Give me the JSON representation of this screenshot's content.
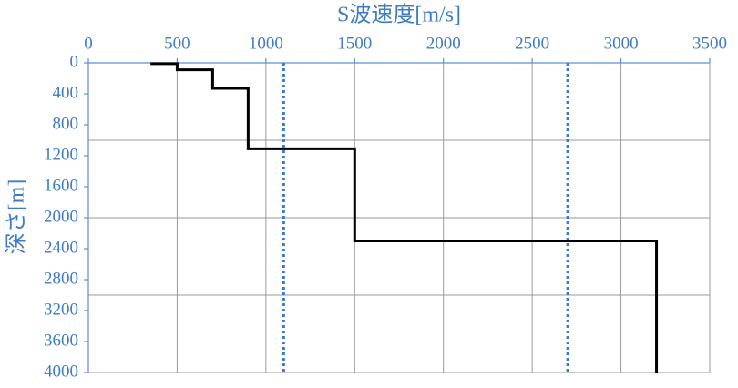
{
  "chart_data": {
    "type": "line",
    "xlabel": "S波速度[m/s]",
    "ylabel": "深さ[m]",
    "xlim": [
      0,
      3500
    ],
    "xticks": [
      0,
      500,
      1000,
      1500,
      2000,
      2500,
      3000,
      3500
    ],
    "ylim": [
      0,
      4000
    ],
    "yticks": [
      0,
      400,
      800,
      1200,
      1600,
      2000,
      2400,
      2800,
      3200,
      3600,
      4000
    ],
    "y_inverted": true,
    "x_axis_top": true,
    "xgrid": [
      500,
      1000,
      1500,
      2000,
      2500,
      3000,
      3500
    ],
    "ygrid": [
      1000,
      2000,
      3000,
      4000
    ],
    "series": [
      {
        "color": "#000000",
        "style": "solid",
        "x": [
          350,
          500,
          500,
          700,
          700,
          900,
          900,
          1500,
          1500,
          3200,
          3200
        ],
        "values": [
          10,
          10,
          90,
          90,
          330,
          330,
          1110,
          1110,
          2300,
          2300,
          4000
        ]
      },
      {
        "color": "#3a78d8",
        "style": "dotted",
        "x": [
          1100,
          1100
        ],
        "values": [
          0,
          4000
        ]
      },
      {
        "color": "#3a78d8",
        "style": "dotted",
        "x": [
          2700,
          2700
        ],
        "values": [
          0,
          4000
        ]
      }
    ]
  }
}
